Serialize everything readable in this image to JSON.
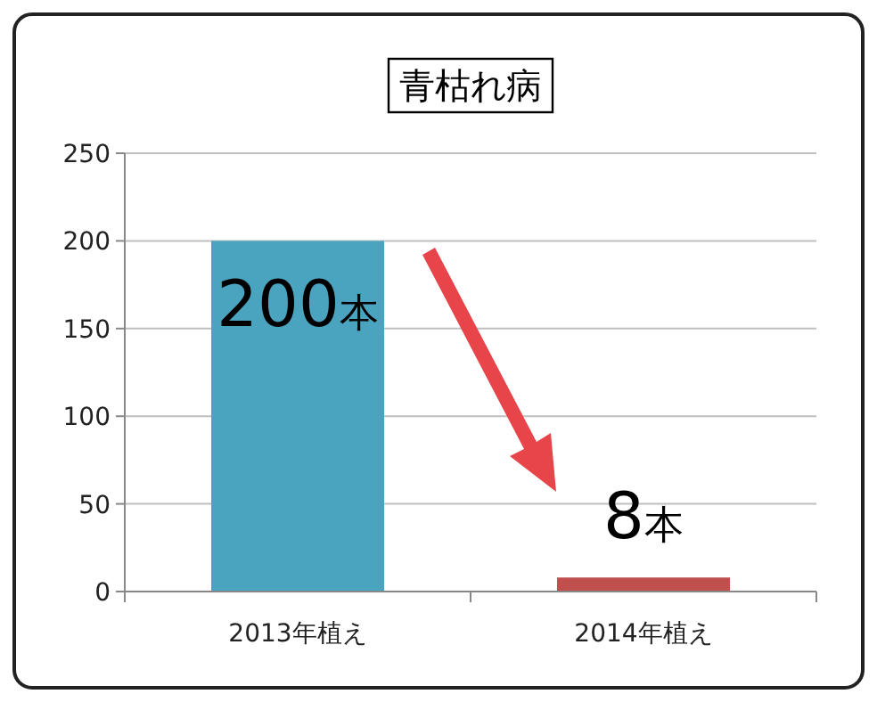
{
  "chart_data": {
    "type": "bar",
    "title": "青枯れ病",
    "categories": [
      "2013年植え",
      "2014年植え"
    ],
    "values": [
      200,
      8
    ],
    "colors": [
      "#4aa3bf",
      "#c0504d"
    ],
    "value_labels": [
      "200本",
      "8本"
    ],
    "ylim": [
      0,
      250
    ],
    "yticks": [
      0,
      50,
      100,
      150,
      200,
      250
    ],
    "grid": "y"
  }
}
